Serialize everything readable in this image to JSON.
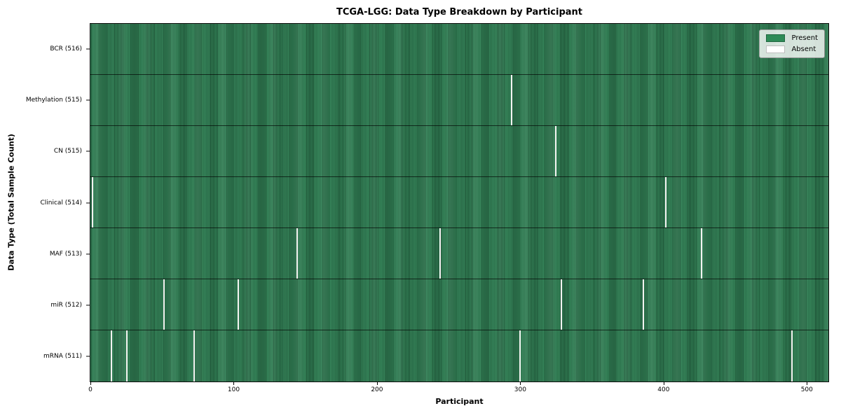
{
  "chart_data": {
    "type": "heatmap",
    "title": "TCGA-LGG: Data Type Breakdown by Participant",
    "xlabel": "Participant",
    "ylabel": "Data Type (Total Sample Count)",
    "n_participants": 516,
    "xlim": [
      0,
      516
    ],
    "x_ticks": [
      0,
      100,
      200,
      300,
      400,
      500
    ],
    "grid": false,
    "legend_position": "upper right",
    "legend": [
      {
        "label": "Present",
        "color": "#2e8b57"
      },
      {
        "label": "Absent",
        "color": "#ffffff"
      }
    ],
    "cell_values": {
      "present": 1,
      "absent": 0
    },
    "rows": [
      {
        "name": "BCR",
        "label": "BCR (516)",
        "total_samples": 516,
        "absent_participants": []
      },
      {
        "name": "Methylation",
        "label": "Methylation (515)",
        "total_samples": 515,
        "absent_participants": [
          294
        ]
      },
      {
        "name": "CN",
        "label": "CN (515)",
        "total_samples": 515,
        "absent_participants": [
          325
        ]
      },
      {
        "name": "Clinical",
        "label": "Clinical (514)",
        "total_samples": 514,
        "absent_participants": [
          1,
          402
        ]
      },
      {
        "name": "MAF",
        "label": "MAF (513)",
        "total_samples": 513,
        "absent_participants": [
          144,
          244,
          427
        ]
      },
      {
        "name": "miR",
        "label": "miR (512)",
        "total_samples": 512,
        "absent_participants": [
          51,
          103,
          329,
          386
        ]
      },
      {
        "name": "mRNA",
        "label": "mRNA (511)",
        "total_samples": 511,
        "absent_participants": [
          14,
          25,
          72,
          300,
          490
        ]
      }
    ]
  }
}
